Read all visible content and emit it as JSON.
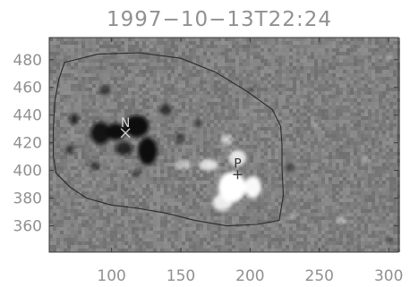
{
  "chart_data": {
    "type": "heatmap",
    "title": "1997−10−13T22:24",
    "xlabel": "",
    "ylabel": "",
    "xlim": [
      55,
      307
    ],
    "ylim": [
      341,
      496
    ],
    "x_ticks": [
      100,
      150,
      200,
      250,
      300
    ],
    "y_ticks": [
      360,
      380,
      400,
      420,
      440,
      460,
      480
    ],
    "x_tick_labels": [
      "100",
      "150",
      "200",
      "250",
      "300"
    ],
    "y_tick_labels": [
      "360",
      "380",
      "400",
      "420",
      "440",
      "460",
      "480"
    ],
    "grid": false,
    "colors": {
      "background_gray": "#7f7f7f",
      "negative": "#0a0a0a",
      "positive": "#ffffff",
      "contour": "#2a2a2a",
      "text": "#909090"
    },
    "negative_centroid": {
      "label": "N",
      "x": 110,
      "y": 427
    },
    "positive_centroid": {
      "label": "P",
      "x": 191,
      "y": 397
    },
    "contour": [
      [
        66,
        478
      ],
      [
        90,
        484
      ],
      [
        120,
        485
      ],
      [
        150,
        481
      ],
      [
        175,
        471
      ],
      [
        198,
        457
      ],
      [
        216,
        444
      ],
      [
        222,
        432
      ],
      [
        223,
        418
      ],
      [
        223,
        402
      ],
      [
        224,
        382
      ],
      [
        221,
        364
      ],
      [
        205,
        361
      ],
      [
        183,
        360
      ],
      [
        160,
        364
      ],
      [
        140,
        369
      ],
      [
        117,
        373
      ],
      [
        100,
        375
      ],
      [
        82,
        380
      ],
      [
        70,
        388
      ],
      [
        60,
        398
      ],
      [
        58,
        410
      ],
      [
        58,
        430
      ],
      [
        59,
        450
      ],
      [
        62,
        466
      ],
      [
        66,
        478
      ]
    ],
    "blobs": [
      {
        "polarity": "negative",
        "x": 92,
        "y": 427,
        "rx": 7,
        "ry": 8,
        "strength": 0.95
      },
      {
        "polarity": "negative",
        "x": 103,
        "y": 428,
        "rx": 7,
        "ry": 6,
        "strength": 1.0
      },
      {
        "polarity": "negative",
        "x": 118,
        "y": 432,
        "rx": 9,
        "ry": 8,
        "strength": 1.0
      },
      {
        "polarity": "negative",
        "x": 126,
        "y": 414,
        "rx": 7,
        "ry": 10,
        "strength": 1.0
      },
      {
        "polarity": "negative",
        "x": 109,
        "y": 416,
        "rx": 6,
        "ry": 5,
        "strength": 0.8
      },
      {
        "polarity": "negative",
        "x": 73,
        "y": 437,
        "rx": 3,
        "ry": 4,
        "strength": 0.8
      },
      {
        "polarity": "negative",
        "x": 70,
        "y": 415,
        "rx": 3,
        "ry": 3,
        "strength": 0.6
      },
      {
        "polarity": "negative",
        "x": 95,
        "y": 458,
        "rx": 4,
        "ry": 3,
        "strength": 0.6
      },
      {
        "polarity": "negative",
        "x": 88,
        "y": 403,
        "rx": 4,
        "ry": 3,
        "strength": 0.5
      },
      {
        "polarity": "negative",
        "x": 139,
        "y": 444,
        "rx": 4,
        "ry": 4,
        "strength": 0.6
      },
      {
        "polarity": "negative",
        "x": 149,
        "y": 423,
        "rx": 3,
        "ry": 4,
        "strength": 0.5
      },
      {
        "polarity": "negative",
        "x": 163,
        "y": 434,
        "rx": 3,
        "ry": 3,
        "strength": 0.45
      },
      {
        "polarity": "negative",
        "x": 201,
        "y": 458,
        "rx": 2,
        "ry": 2,
        "strength": 0.4
      },
      {
        "polarity": "negative",
        "x": 229,
        "y": 402,
        "rx": 3,
        "ry": 3,
        "strength": 0.5
      },
      {
        "polarity": "negative",
        "x": 300,
        "y": 350,
        "rx": 3,
        "ry": 2,
        "strength": 0.35
      },
      {
        "polarity": "negative",
        "x": 118,
        "y": 398,
        "rx": 3,
        "ry": 3,
        "strength": 0.5
      },
      {
        "polarity": "positive",
        "x": 187,
        "y": 388,
        "rx": 10,
        "ry": 11,
        "strength": 1.0
      },
      {
        "polarity": "positive",
        "x": 202,
        "y": 388,
        "rx": 6,
        "ry": 8,
        "strength": 0.95
      },
      {
        "polarity": "positive",
        "x": 180,
        "y": 377,
        "rx": 7,
        "ry": 6,
        "strength": 0.85
      },
      {
        "polarity": "positive",
        "x": 170,
        "y": 404,
        "rx": 7,
        "ry": 4,
        "strength": 0.75
      },
      {
        "polarity": "positive",
        "x": 152,
        "y": 404,
        "rx": 6,
        "ry": 3,
        "strength": 0.5
      },
      {
        "polarity": "positive",
        "x": 191,
        "y": 409,
        "rx": 6,
        "ry": 6,
        "strength": 0.8
      },
      {
        "polarity": "positive",
        "x": 183,
        "y": 422,
        "rx": 4,
        "ry": 4,
        "strength": 0.55
      },
      {
        "polarity": "positive",
        "x": 231,
        "y": 367,
        "rx": 2,
        "ry": 2,
        "strength": 0.4
      },
      {
        "polarity": "positive",
        "x": 247,
        "y": 433,
        "rx": 2,
        "ry": 2,
        "strength": 0.35
      },
      {
        "polarity": "positive",
        "x": 266,
        "y": 364,
        "rx": 3,
        "ry": 3,
        "strength": 0.45
      },
      {
        "polarity": "positive",
        "x": 283,
        "y": 408,
        "rx": 2,
        "ry": 3,
        "strength": 0.35
      },
      {
        "polarity": "positive",
        "x": 300,
        "y": 481,
        "rx": 2,
        "ry": 2,
        "strength": 0.3
      }
    ]
  }
}
